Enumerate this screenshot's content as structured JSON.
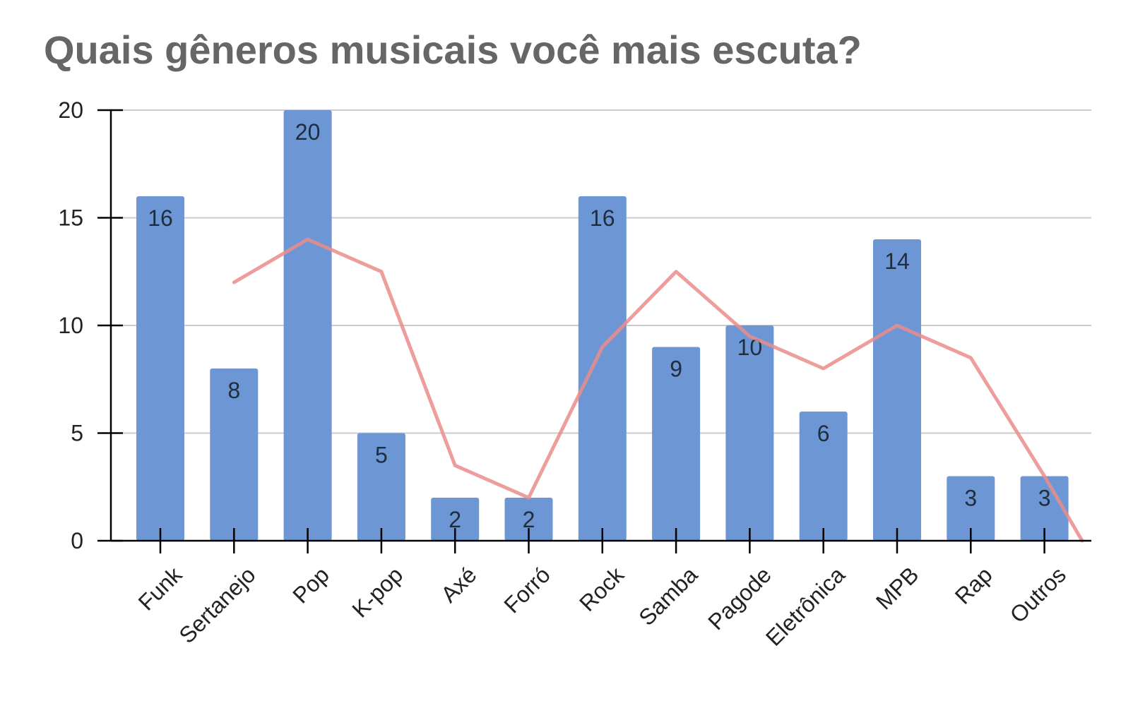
{
  "chart_data": {
    "type": "bar",
    "title": "Quais gêneros musicais você mais escuta?",
    "xlabel": "",
    "ylabel": "",
    "categories": [
      "Funk",
      "Sertanejo",
      "Pop",
      "K-pop",
      "Axé",
      "Forró",
      "Rock",
      "Samba",
      "Pagode",
      "Eletrônica",
      "MPB",
      "Rap",
      "Outros"
    ],
    "values": [
      16,
      8,
      20,
      5,
      2,
      2,
      16,
      9,
      10,
      6,
      14,
      3,
      3
    ],
    "data_labels": [
      "16",
      "8",
      "20",
      "5",
      "2",
      "2",
      "16",
      "9",
      "10",
      "6",
      "14",
      "3",
      "3"
    ],
    "trendline": {
      "type": "moving_average",
      "period": 2,
      "values": [
        12,
        14,
        12.5,
        3.5,
        2,
        9,
        12.5,
        9.5,
        8,
        10,
        8.5,
        3
      ]
    },
    "ylim": [
      0,
      20
    ],
    "yticks": [
      0,
      5,
      10,
      15,
      20
    ],
    "ytick_labels": [
      "0",
      "5",
      "10",
      "15",
      "20"
    ],
    "grid": true,
    "legend": "none",
    "colors": {
      "bar": "#6d97d4",
      "trendline": "#ea8c8a",
      "gridline": "#cccccc",
      "axis": "#000000",
      "title": "#666666"
    }
  }
}
